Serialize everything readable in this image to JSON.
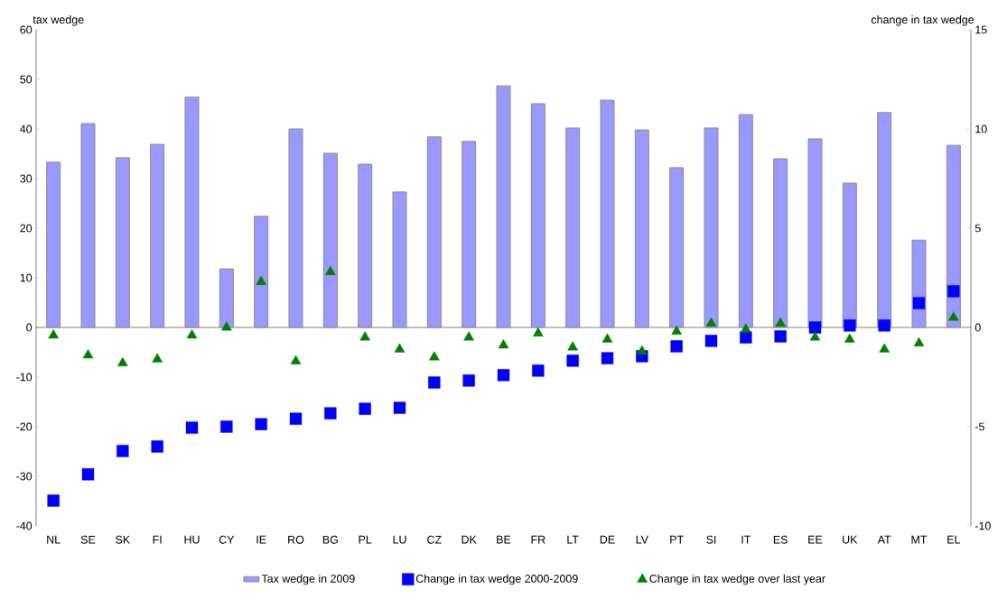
{
  "chart_data": {
    "type": "bar",
    "ylabel": "tax wedge",
    "y2label": "change in tax wedge",
    "categories": [
      "NL",
      "SE",
      "SK",
      "FI",
      "HU",
      "CY",
      "IE",
      "RO",
      "BG",
      "PL",
      "LU",
      "CZ",
      "DK",
      "BE",
      "FR",
      "LT",
      "DE",
      "LV",
      "PT",
      "SI",
      "IT",
      "ES",
      "EE",
      "UK",
      "AT",
      "MT",
      "EL"
    ],
    "series": [
      {
        "name": "Tax wedge in 2009",
        "color": "#9999ff",
        "values": [
          33.3,
          41.1,
          34.2,
          36.9,
          46.4,
          11.8,
          22.4,
          40.0,
          35.1,
          32.9,
          27.3,
          38.4,
          37.5,
          48.7,
          45.1,
          40.2,
          45.8,
          39.8,
          32.2,
          40.2,
          42.9,
          34.0,
          38.0,
          29.1,
          43.3,
          17.6,
          36.7
        ]
      },
      {
        "name": "Change in tax wedge 2000-2009",
        "type": "scatter",
        "marker": "square",
        "color": "#0000ff",
        "values": [
          -34.9,
          -29.6,
          -24.9,
          -24.0,
          -20.2,
          -20.0,
          -19.5,
          -18.4,
          -17.3,
          -16.4,
          -16.2,
          -11.1,
          -10.7,
          -9.6,
          -8.7,
          -6.7,
          -6.2,
          -5.8,
          -3.8,
          -2.7,
          -2.0,
          -1.8,
          0.0,
          0.4,
          0.4,
          4.9,
          7.3
        ]
      },
      {
        "name": "Change in tax wedge over last year",
        "type": "scatter",
        "marker": "triangle",
        "axis": "y2",
        "color": "#008000",
        "values": [
          -0.4,
          -1.4,
          -1.8,
          -1.6,
          -0.4,
          0.0,
          2.3,
          -1.7,
          2.8,
          -0.5,
          -1.1,
          -1.5,
          -0.5,
          -0.9,
          -0.3,
          -1.0,
          -0.6,
          -1.2,
          -0.2,
          0.2,
          -0.1,
          0.2,
          -0.5,
          -0.6,
          -1.1,
          -0.8,
          0.5
        ]
      }
    ],
    "ylim": [
      -40,
      60
    ],
    "yticks": [
      -40,
      -30,
      -20,
      -10,
      0,
      10,
      20,
      30,
      40,
      50,
      60
    ],
    "y2lim": [
      -10,
      15
    ],
    "y2ticks": [
      -10,
      -5,
      0,
      5,
      10,
      15
    ],
    "legend": "bottom"
  }
}
